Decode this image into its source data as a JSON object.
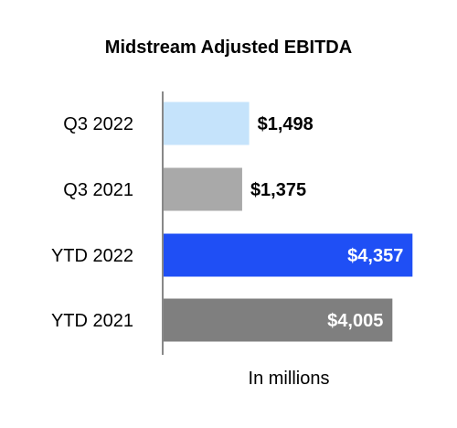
{
  "chart_data": {
    "type": "bar",
    "orientation": "horizontal",
    "title": "Midstream Adjusted EBITDA",
    "xlabel": "In millions",
    "ylabel": "",
    "categories": [
      "Q3 2022",
      "Q3 2021",
      "YTD 2022",
      "YTD 2021"
    ],
    "values": [
      1498,
      1375,
      4357,
      4005
    ],
    "value_labels": [
      "$1,498",
      "$1,375",
      "$4,357",
      "$4,005"
    ],
    "bar_colors": [
      "#c5e3fb",
      "#a9a9a9",
      "#1f4ff5",
      "#7f7f7f"
    ],
    "value_label_position": [
      "outside",
      "outside",
      "inside",
      "inside"
    ],
    "value_label_colors": [
      "#000000",
      "#000000",
      "#ffffff",
      "#ffffff"
    ],
    "xlim": [
      0,
      4400
    ],
    "grid": false,
    "legend": "none"
  }
}
